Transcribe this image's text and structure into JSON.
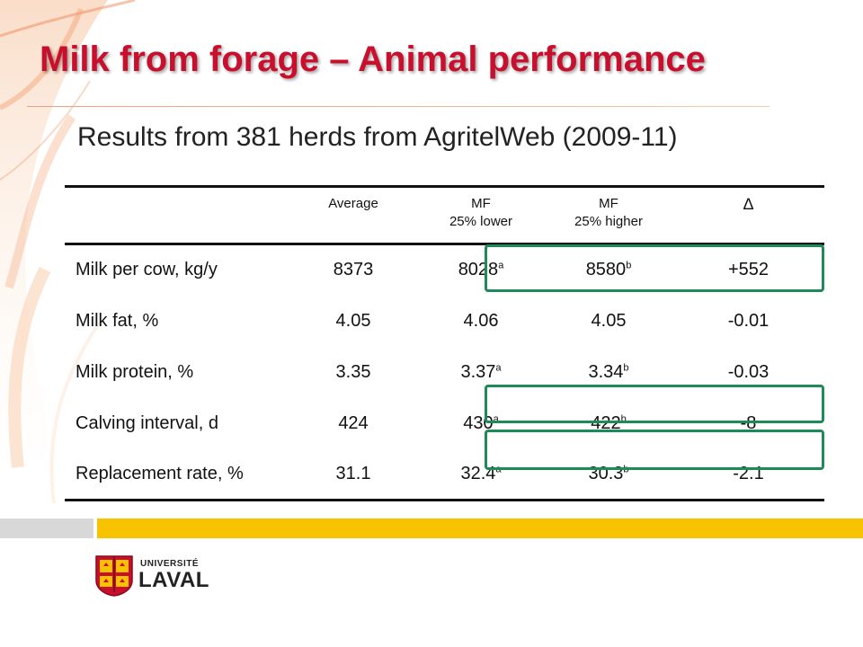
{
  "slide": {
    "title": "Milk from forage – Animal performance",
    "subtitle": "Results from 381 herds from AgritelWeb (2009-11)"
  },
  "table": {
    "headers": [
      {
        "line1": "",
        "line2": ""
      },
      {
        "line1": "Average",
        "line2": ""
      },
      {
        "line1": "MF",
        "line2": "25% lower"
      },
      {
        "line1": "MF",
        "line2": "25% higher"
      },
      {
        "line1": "∆",
        "line2": ""
      }
    ],
    "rows": [
      {
        "label": "Milk per cow, kg/y",
        "average": "8373",
        "lower": "8028",
        "lower_sup": "a",
        "higher": "8580",
        "higher_sup": "b",
        "delta": "+552",
        "highlighted": true
      },
      {
        "label": "Milk fat, %",
        "average": "4.05",
        "lower": "4.06",
        "lower_sup": "",
        "higher": "4.05",
        "higher_sup": "",
        "delta": "-0.01",
        "highlighted": false
      },
      {
        "label": "Milk protein, %",
        "average": "3.35",
        "lower": "3.37",
        "lower_sup": "a",
        "higher": "3.34",
        "higher_sup": "b",
        "delta": "-0.03",
        "highlighted": false
      },
      {
        "label": "Calving interval, d",
        "average": "424",
        "lower": "430",
        "lower_sup": "a",
        "higher": "422",
        "higher_sup": "b",
        "delta": "-8",
        "highlighted": true
      },
      {
        "label": "Replacement rate, %",
        "average": "31.1",
        "lower": "32.4",
        "lower_sup": "a",
        "higher": "30.3",
        "higher_sup": "b",
        "delta": "-2.1",
        "highlighted": true
      }
    ]
  },
  "logo": {
    "line1": "UNIVERSITÉ",
    "line2": "LAVAL"
  },
  "colors": {
    "title": "#c8102e",
    "highlight_box": "#1e8a5a",
    "bar_gold": "#f7c300",
    "bar_gray": "#d8d8d8"
  }
}
